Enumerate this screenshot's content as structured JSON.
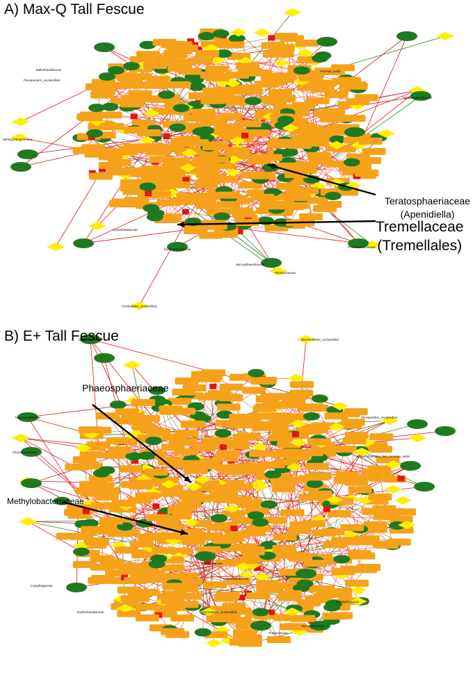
{
  "panels": [
    {
      "label": "A) Max-Q Tall Fescue",
      "annotations": [
        {
          "lines": [
            "Teratosphaeriaceae",
            "(Apenidiella)"
          ]
        },
        {
          "lines": [
            "Tremellaceae",
            "(Tremellales)"
          ]
        }
      ],
      "node_labels": [
        "Mycosphaerellaceae",
        "Pleosporaceae",
        "Phaeosphaeriaceae",
        "Pleosporales_unclassified",
        "Erythrobasidiaceae",
        "Cystobasidiaceae",
        "Clostridiales_unclassified",
        "Sphingobacteriaceae",
        "Bulleribasidiaceae",
        "Sphingomonadaceae",
        "Incertae_sedis"
      ]
    },
    {
      "label": "B) E+ Tall Fescue",
      "annotations": [
        {
          "lines": [
            "Phaeosphaeriaceae"
          ]
        },
        {
          "lines": [
            "Methylobacteriaceae"
          ]
        }
      ],
      "node_labels": [
        "Cystobasidiaceae",
        "Bacteroidetes_unclassified",
        "Pleosporales_unclassified",
        "Hymenochaetales_fam_Incertae_sedis",
        "Magnaporthaceae",
        "Chrysozymaceae",
        "Cytophagaceae",
        "Erythrobasidiaceae",
        "Sporidiobolaceae",
        "Polyporaceae",
        "Microbotryaceae",
        "Clostridiales_unclassified",
        "Pleosporaceae",
        "Peniophoraceae"
      ]
    }
  ],
  "colors": {
    "node_orange": "#f5a21a",
    "node_green": "#1f7a1f",
    "node_yellow": "#ffee00",
    "edge_red": "#e01515",
    "edge_green": "#2a8a2a"
  }
}
